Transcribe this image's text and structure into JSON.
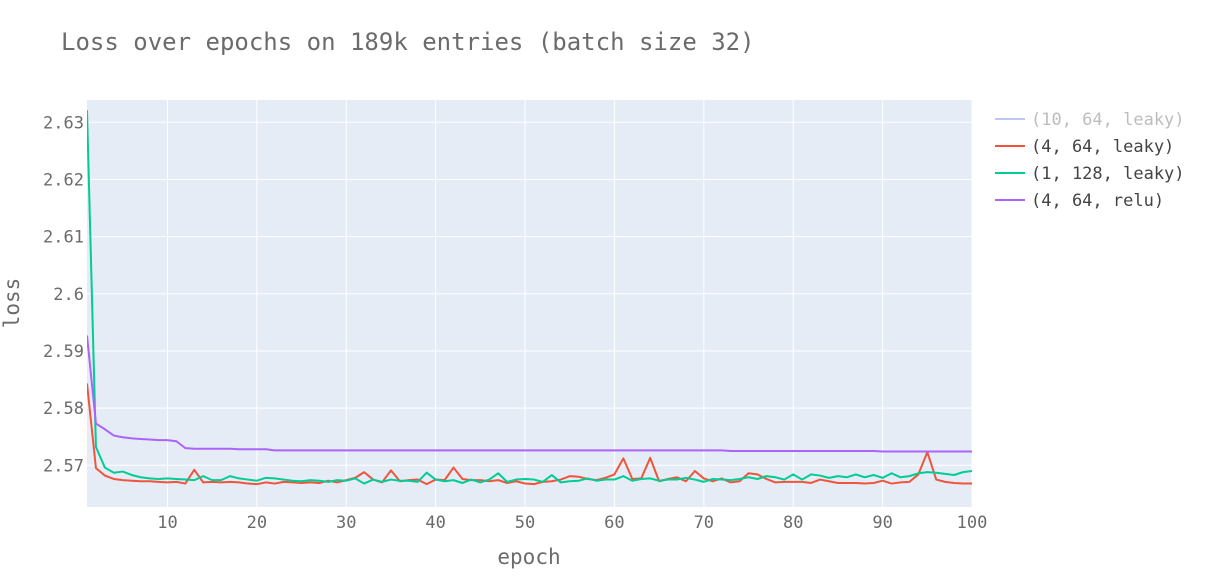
{
  "chart_data": {
    "type": "line",
    "title": "Loss over epochs on 189k entries (batch size 32)",
    "xlabel": "epoch",
    "ylabel": "loss",
    "xlim": [
      1,
      100
    ],
    "ylim": [
      2.5627,
      2.6339
    ],
    "x_ticks": [
      10,
      20,
      30,
      40,
      50,
      60,
      70,
      80,
      90,
      100
    ],
    "y_ticks": [
      2.57,
      2.58,
      2.59,
      2.6,
      2.61,
      2.62,
      2.63
    ],
    "y_tick_labels": [
      "2.57",
      "2.58",
      "2.59",
      "2.6",
      "2.61",
      "2.62",
      "2.63"
    ],
    "grid": true,
    "legend_position": "right",
    "series": [
      {
        "name": "(10, 64, leaky)",
        "color": "#636efa",
        "visible": false,
        "values": []
      },
      {
        "name": "(4, 64, leaky)",
        "color": "#ef553b",
        "visible": true,
        "values": [
          2.5843,
          2.5695,
          2.5682,
          2.5676,
          2.5674,
          2.5673,
          2.5672,
          2.5672,
          2.5671,
          2.567,
          2.5671,
          2.5668,
          2.5692,
          2.567,
          2.5671,
          2.567,
          2.5671,
          2.567,
          2.5668,
          2.5667,
          2.567,
          2.5668,
          2.5671,
          2.567,
          2.5669,
          2.567,
          2.5669,
          2.5673,
          2.567,
          2.5674,
          2.5678,
          2.5688,
          2.5675,
          2.567,
          2.5691,
          2.5672,
          2.5674,
          2.5675,
          2.5667,
          2.5675,
          2.5674,
          2.5696,
          2.5676,
          2.5674,
          2.5674,
          2.5672,
          2.5674,
          2.5669,
          2.5672,
          2.5668,
          2.5667,
          2.5671,
          2.5672,
          2.5675,
          2.5681,
          2.568,
          2.5676,
          2.5674,
          2.5678,
          2.5684,
          2.5712,
          2.5676,
          2.5677,
          2.5713,
          2.5672,
          2.5676,
          2.5679,
          2.5672,
          2.569,
          2.5677,
          2.5672,
          2.5677,
          2.567,
          2.5672,
          2.5686,
          2.5684,
          2.5676,
          2.567,
          2.5671,
          2.5671,
          2.5671,
          2.5669,
          2.5675,
          2.5672,
          2.5669,
          2.5669,
          2.5669,
          2.5668,
          2.5669,
          2.5673,
          2.5668,
          2.567,
          2.5671,
          2.5684,
          2.5723,
          2.5675,
          2.5671,
          2.5669,
          2.5668,
          2.5668
        ]
      },
      {
        "name": "(1, 128, leaky)",
        "color": "#00cc96",
        "visible": true,
        "values": [
          2.6321,
          2.5732,
          2.5696,
          2.5687,
          2.5689,
          2.5683,
          2.5679,
          2.5677,
          2.5676,
          2.5677,
          2.5676,
          2.5675,
          2.5674,
          2.5681,
          2.5674,
          2.5674,
          2.5681,
          2.5677,
          2.5675,
          2.5673,
          2.5678,
          2.5677,
          2.5675,
          2.5673,
          2.5672,
          2.5674,
          2.5673,
          2.5671,
          2.5674,
          2.5673,
          2.5677,
          2.5668,
          2.5675,
          2.5671,
          2.5675,
          2.5673,
          2.5673,
          2.5671,
          2.5687,
          2.5675,
          2.5672,
          2.5674,
          2.5669,
          2.5675,
          2.567,
          2.5675,
          2.5686,
          2.5671,
          2.5675,
          2.5676,
          2.5675,
          2.5671,
          2.5683,
          2.567,
          2.5672,
          2.5673,
          2.5677,
          2.5673,
          2.5675,
          2.5675,
          2.5681,
          2.5673,
          2.5676,
          2.5677,
          2.5673,
          2.5675,
          2.5675,
          2.5678,
          2.5675,
          2.5671,
          2.5676,
          2.5675,
          2.5674,
          2.5676,
          2.5679,
          2.5676,
          2.5681,
          2.5679,
          2.5675,
          2.5684,
          2.5675,
          2.5684,
          2.5682,
          2.5678,
          2.5681,
          2.5679,
          2.5684,
          2.5679,
          2.5683,
          2.5678,
          2.5686,
          2.5679,
          2.5681,
          2.5686,
          2.5688,
          2.5687,
          2.5685,
          2.5683,
          2.5688,
          2.569
        ]
      },
      {
        "name": "(4, 64, relu)",
        "color": "#ab63fa",
        "visible": true,
        "values": [
          2.5927,
          2.5773,
          2.5763,
          2.5752,
          2.5749,
          2.5747,
          2.5746,
          2.5745,
          2.5744,
          2.5744,
          2.5742,
          2.573,
          2.5729,
          2.5729,
          2.5729,
          2.5729,
          2.5729,
          2.5728,
          2.5728,
          2.5728,
          2.5728,
          2.5726,
          2.5726,
          2.5726,
          2.5726,
          2.5726,
          2.5726,
          2.5726,
          2.5726,
          2.5726,
          2.5726,
          2.5726,
          2.5726,
          2.5726,
          2.5726,
          2.5726,
          2.5726,
          2.5726,
          2.5726,
          2.5726,
          2.5726,
          2.5726,
          2.5726,
          2.5726,
          2.5726,
          2.5726,
          2.5726,
          2.5726,
          2.5726,
          2.5726,
          2.5726,
          2.5726,
          2.5726,
          2.5726,
          2.5726,
          2.5726,
          2.5726,
          2.5726,
          2.5726,
          2.5726,
          2.5726,
          2.5726,
          2.5726,
          2.5726,
          2.5726,
          2.5726,
          2.5726,
          2.5726,
          2.5726,
          2.5726,
          2.5726,
          2.5726,
          2.5725,
          2.5725,
          2.5725,
          2.5725,
          2.5725,
          2.5725,
          2.5725,
          2.5725,
          2.5725,
          2.5725,
          2.5725,
          2.5725,
          2.5725,
          2.5725,
          2.5725,
          2.5725,
          2.5725,
          2.5724,
          2.5724,
          2.5724,
          2.5724,
          2.5724,
          2.5724,
          2.5724,
          2.5724,
          2.5724,
          2.5724,
          2.5724
        ]
      }
    ]
  }
}
